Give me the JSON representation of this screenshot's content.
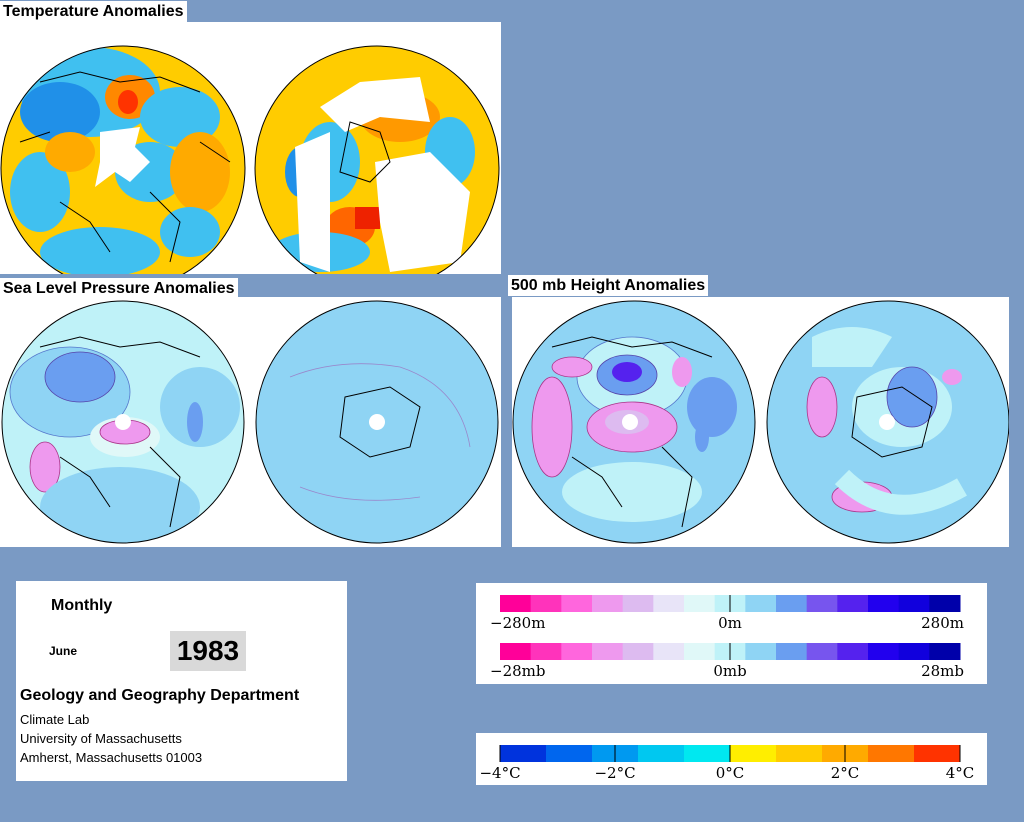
{
  "sections": {
    "temperature": {
      "title": "Temperature Anomalies"
    },
    "slp": {
      "title": "Sea Level Pressure Anomalies"
    },
    "height": {
      "title": "500 mb Height Anomalies"
    }
  },
  "info": {
    "period": "Monthly",
    "month": "June",
    "year": "1983",
    "department": "Geology and Geography Department",
    "lab": "Climate Lab",
    "university": "University of Massachusetts",
    "address": "Amherst, Massachusetts 01003"
  },
  "legends": {
    "height": {
      "min": "−280m",
      "mid": "0m",
      "max": "280m"
    },
    "pressure": {
      "min": "−28mb",
      "mid": "0mb",
      "max": "28mb"
    },
    "temperature": {
      "ticks": [
        "−4°C",
        "−2°C",
        "0°C",
        "2°C",
        "4°C"
      ]
    }
  },
  "colors": {
    "background": "#7a9ac4",
    "anomaly_scale": [
      "#ff0099",
      "#ff33bb",
      "#ff66dd",
      "#ee99ee",
      "#ddbbf0",
      "#e8e4f8",
      "#e0f8f8",
      "#bff2f8",
      "#8fd4f4",
      "#6a9ef0",
      "#7755ee",
      "#5522ee",
      "#2200ee",
      "#1100dd",
      "#0000aa"
    ],
    "temperature_scale": [
      "#0033dd",
      "#0066ee",
      "#0099f0",
      "#00c8f0",
      "#00e8f0",
      "#ffee00",
      "#ffcc00",
      "#ffaa00",
      "#ff7700",
      "#ff3300"
    ]
  }
}
